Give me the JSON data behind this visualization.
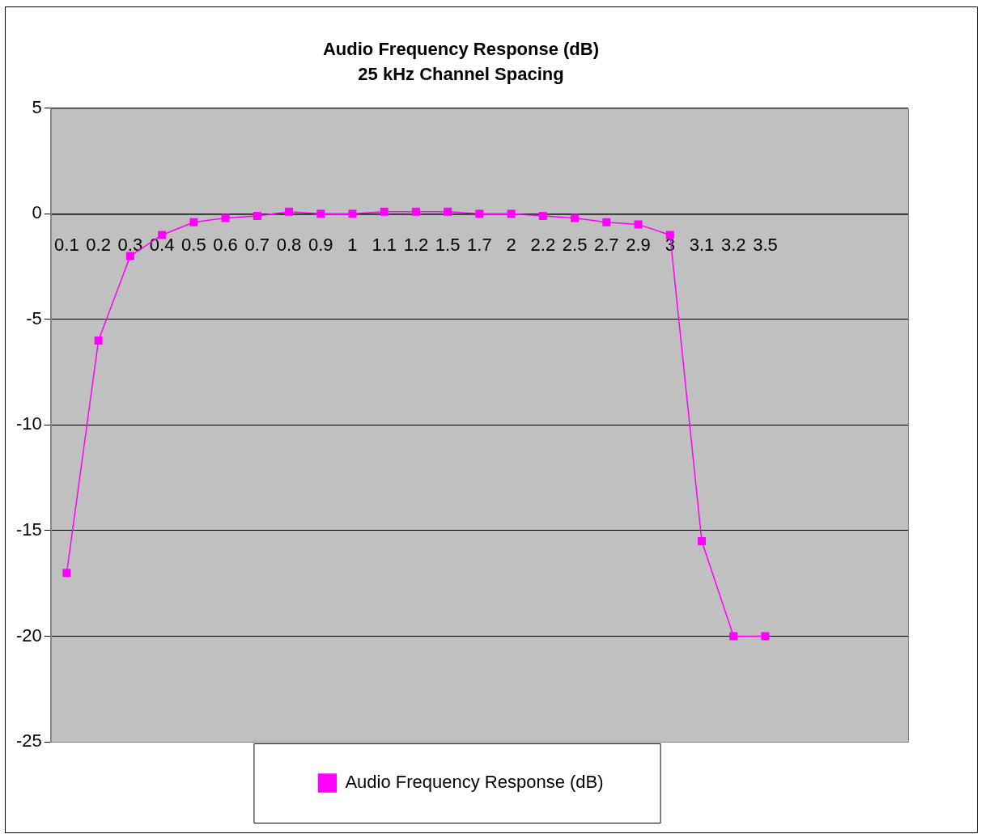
{
  "chart_data": {
    "type": "line",
    "title": "Audio Frequency Response (dB)",
    "subtitle": "25 kHz Channel Spacing",
    "categories": [
      "0.1",
      "0.2",
      "0.3",
      "0.4",
      "0.5",
      "0.6",
      "0.7",
      "0.8",
      "0.9",
      "1",
      "1.1",
      "1.2",
      "1.5",
      "1.7",
      "2",
      "2.2",
      "2.5",
      "2.7",
      "2.9",
      "3",
      "3.1",
      "3.2",
      "3.5",
      null,
      null,
      null,
      null
    ],
    "series": [
      {
        "name": "Audio Frequency Response (dB)",
        "color": "#ff00ff",
        "values": [
          -17,
          -6,
          -2,
          -1,
          -0.4,
          -0.2,
          -0.1,
          0.1,
          0,
          0,
          0.1,
          0.1,
          0.1,
          0,
          0,
          -0.1,
          -0.2,
          -0.4,
          -0.5,
          -1,
          -15.5,
          -20,
          -20,
          null,
          null,
          null,
          null
        ]
      }
    ],
    "ylim": [
      -25,
      5
    ],
    "yticks": [
      -25,
      -20,
      -15,
      -10,
      -5,
      0,
      5
    ],
    "grid": "y",
    "legend": "bottom",
    "marker": "square",
    "line_style": "solid"
  }
}
